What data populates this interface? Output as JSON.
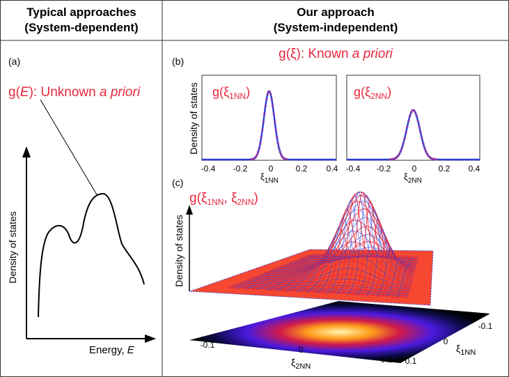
{
  "left_panel": {
    "header_line1": "Typical approaches",
    "header_line2": "(System-dependent)",
    "panel_label": "(a)",
    "annotation_fn": "g(",
    "annotation_var": "E",
    "annotation_rest": "): Unknown ",
    "annotation_italic": "a priori",
    "ylabel": "Density of states",
    "xlabel_prefix": "Energy, ",
    "xlabel_var": "E"
  },
  "right_panel": {
    "header_line1": "Our approach",
    "header_line2": "(System-independent)",
    "panel_b_label": "(b)",
    "panel_c_label": "(c)",
    "known_fn": "g(ξ): Known ",
    "known_italic": "a priori",
    "plot1_legend": "g(ξ",
    "plot1_legend_sub": "1NN",
    "plot2_legend": "g(ξ",
    "plot2_legend_sub": "2NN",
    "plot_ylabel": "Density of states",
    "xaxis1_label": "ξ",
    "xaxis1_sub": "1NN",
    "xaxis2_label": "ξ",
    "xaxis2_sub": "2NN",
    "surface_legend": "g(ξ",
    "surface_legend_sub1": "1NN",
    "surface_legend_mid": ", ξ",
    "surface_legend_sub2": "2NN",
    "surface_ylabel": "Density of states",
    "base_x_label": "ξ",
    "base_x_sub": "2NN",
    "base_y_label": "ξ",
    "base_y_sub": "1NN"
  },
  "colors": {
    "red": "#e8283c",
    "blue": "#2b3cd6",
    "purple": "#8a3aa8"
  },
  "chart_data": [
    {
      "type": "line",
      "title": "g(ξ1NN)",
      "xlabel": "ξ1NN",
      "ylabel": "Density of states",
      "xlim": [
        -0.45,
        0.45
      ],
      "xticks": [
        "-0.4",
        "-0.2",
        "0",
        "0.2",
        "0.4"
      ],
      "series": [
        {
          "name": "g(ξ1NN)",
          "distribution": "gaussian",
          "mean": 0,
          "sigma": 0.035
        }
      ]
    },
    {
      "type": "line",
      "title": "g(ξ2NN)",
      "xlabel": "ξ2NN",
      "ylabel": "Density of states",
      "xlim": [
        -0.45,
        0.45
      ],
      "xticks": [
        "-0.4",
        "-0.2",
        "0",
        "0.2",
        "0.4"
      ],
      "series": [
        {
          "name": "g(ξ2NN)",
          "distribution": "gaussian",
          "mean": 0,
          "sigma": 0.045
        }
      ]
    },
    {
      "type": "heatmap",
      "title": "g(ξ1NN, ξ2NN)",
      "xlabel": "ξ2NN",
      "ylabel": "ξ1NN",
      "xticks": [
        "-0.1",
        "0",
        "0.1"
      ],
      "yticks": [
        "-0.1",
        "0",
        "0.1"
      ]
    }
  ]
}
